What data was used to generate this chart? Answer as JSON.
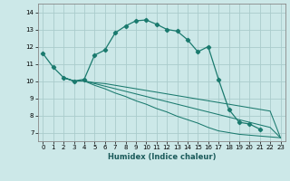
{
  "xlabel": "Humidex (Indice chaleur)",
  "ylabel": "",
  "bg_color": "#cce8e8",
  "grid_color": "#aacccc",
  "line_color": "#1a7a6e",
  "xlim": [
    -0.5,
    23.5
  ],
  "ylim": [
    6.5,
    14.5
  ],
  "xticks": [
    0,
    1,
    2,
    3,
    4,
    5,
    6,
    7,
    8,
    9,
    10,
    11,
    12,
    13,
    14,
    15,
    16,
    17,
    18,
    19,
    20,
    21,
    22,
    23
  ],
  "yticks": [
    7,
    8,
    9,
    10,
    11,
    12,
    13,
    14
  ],
  "series": [
    {
      "x": [
        0,
        1,
        2,
        3,
        4,
        5,
        6,
        7,
        8,
        9,
        10,
        11,
        12,
        13,
        14,
        15,
        16,
        17,
        18,
        19,
        20,
        21,
        22,
        23
      ],
      "y": [
        11.6,
        10.8,
        10.2,
        10.0,
        10.1,
        11.5,
        11.8,
        12.8,
        13.2,
        13.5,
        13.55,
        13.3,
        13.0,
        12.9,
        12.4,
        11.7,
        12.0,
        10.1,
        8.35,
        7.6,
        7.5,
        7.2,
        null,
        null
      ],
      "marker": true
    },
    {
      "x": [
        2,
        3,
        4,
        5,
        6,
        7,
        8,
        9,
        10,
        11,
        12,
        13,
        14,
        15,
        16,
        17,
        18,
        19,
        20,
        21,
        22,
        23
      ],
      "y": [
        10.2,
        10.0,
        10.0,
        9.9,
        9.85,
        9.75,
        9.65,
        9.55,
        9.45,
        9.35,
        9.25,
        9.15,
        9.05,
        8.95,
        8.85,
        8.75,
        8.65,
        8.55,
        8.45,
        8.35,
        8.25,
        6.7
      ],
      "marker": false
    },
    {
      "x": [
        2,
        3,
        4,
        5,
        6,
        7,
        8,
        9,
        10,
        11,
        12,
        13,
        14,
        15,
        16,
        17,
        18,
        19,
        20,
        21,
        22,
        23
      ],
      "y": [
        10.2,
        10.0,
        10.0,
        9.85,
        9.7,
        9.55,
        9.4,
        9.25,
        9.1,
        8.95,
        8.8,
        8.65,
        8.5,
        8.35,
        8.2,
        8.05,
        7.9,
        7.75,
        7.6,
        7.45,
        7.3,
        6.7
      ],
      "marker": false
    },
    {
      "x": [
        2,
        3,
        4,
        5,
        6,
        7,
        8,
        9,
        10,
        11,
        12,
        13,
        14,
        15,
        16,
        17,
        18,
        19,
        20,
        21,
        22,
        23
      ],
      "y": [
        10.2,
        10.0,
        10.0,
        9.75,
        9.55,
        9.3,
        9.1,
        8.85,
        8.65,
        8.4,
        8.2,
        7.95,
        7.75,
        7.55,
        7.3,
        7.1,
        7.0,
        6.9,
        6.85,
        6.8,
        6.75,
        6.7
      ],
      "marker": false
    }
  ]
}
